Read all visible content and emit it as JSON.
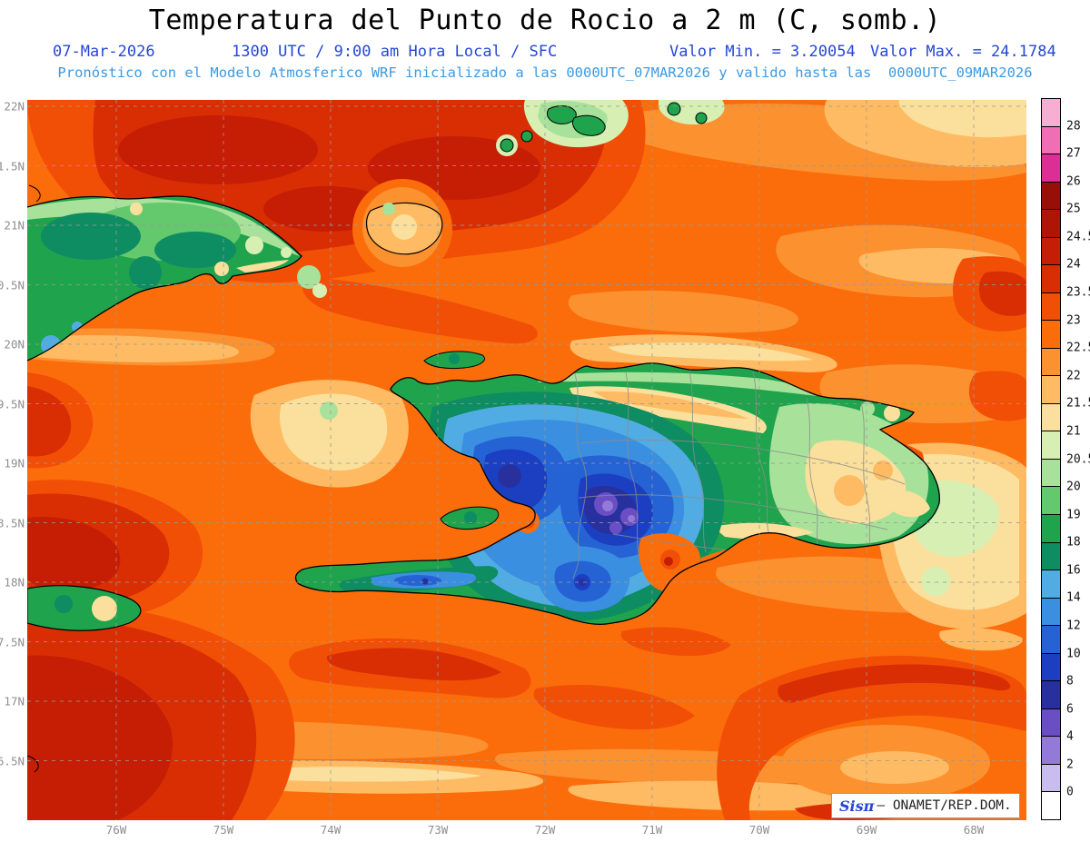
{
  "header": {
    "title": "Temperatura del Punto de Rocio a 2 m (C, somb.)",
    "date": "07-Mar-2026",
    "time_line": "1300 UTC / 9:00 am Hora Local / SFC",
    "min_label": "Valor Min. = 3.20054",
    "max_label": "Valor Max. = 24.1784",
    "model_line": "Pronóstico con el Modelo Atmosferico WRF inicializado a las 0000UTC_07MAR2026 y valido hasta las  0000UTC_09MAR2026"
  },
  "map": {
    "y_axis_labels": [
      "22N",
      "1.5N",
      "21N",
      "0.5N",
      "20N",
      "9.5N",
      "19N",
      "8.5N",
      "18N",
      "7.5N",
      "17N",
      "6.5N"
    ],
    "x_axis_labels": [
      "76W",
      "75W",
      "74W",
      "73W",
      "72W",
      "71W",
      "70W",
      "69W",
      "68W"
    ]
  },
  "legend": {
    "labels": [
      "28",
      "27",
      "26",
      "25",
      "24.5",
      "24",
      "23.5",
      "23",
      "22.5",
      "22",
      "21.5",
      "21",
      "20.5",
      "20",
      "19",
      "18",
      "16",
      "14",
      "12",
      "10",
      "8",
      "6",
      "4",
      "2",
      "0"
    ],
    "colors": [
      "#F8AED2",
      "#F06EB4",
      "#DC2F96",
      "#970F06",
      "#AE1505",
      "#C61D05",
      "#D92E04",
      "#F24F06",
      "#FB6D0B",
      "#FC9130",
      "#FEBB63",
      "#FAE09C",
      "#D8EFB4",
      "#A8E29A",
      "#63C96C",
      "#1FA34D",
      "#0E8C62",
      "#52ACE4",
      "#3B8FE0",
      "#2563D4",
      "#1B3FC0",
      "#28309E",
      "#6A4FC4",
      "#9379D8",
      "#C9BCEE",
      "#FFFFFF"
    ]
  },
  "watermark": {
    "brand": "Sisπ",
    "org": "– ONAMET/REP.DOM."
  },
  "colors": {
    "header_blue": "#2447D4",
    "model_line_blue": "#3B9AE1",
    "axis_label_gray": "#8E8E8E",
    "map_background_orange": "#FB6D0B"
  }
}
